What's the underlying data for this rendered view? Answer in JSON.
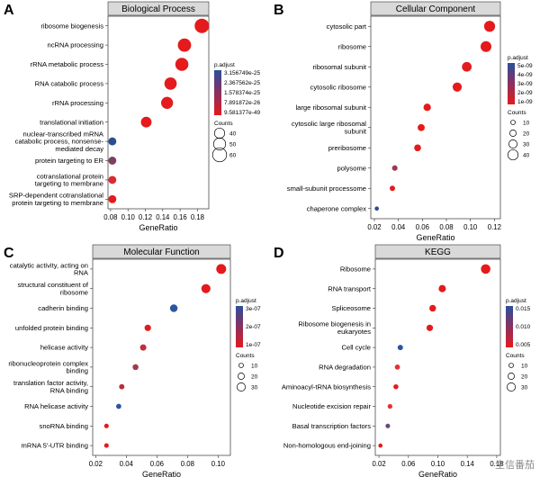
{
  "watermark": "生信番茄",
  "chart_data": [
    {
      "type": "scatter",
      "letter": "A",
      "title": "Biological Process",
      "xlabel": "GeneRatio",
      "xlim": [
        0.077,
        0.193
      ],
      "xticks": [
        0.08,
        0.1,
        0.12,
        0.14,
        0.16,
        0.18
      ],
      "xtick_labels": [
        "0.08",
        "0.10",
        "0.12",
        "0.14",
        "0.16",
        "0.18"
      ],
      "color_title": "p.adjust",
      "color_labels": [
        "3.156749e-25",
        "2.367562e-25",
        "1.578374e-25",
        "7.891872e-26",
        "9.581377e-49"
      ],
      "size_title": "Counts",
      "size_labels": [
        "40",
        "50",
        "60"
      ],
      "size_values": [
        40,
        50,
        60
      ],
      "points": [
        {
          "term": [
            "ribosome biogenesis"
          ],
          "x": 0.185,
          "count": 62,
          "color": "#e41a1c"
        },
        {
          "term": [
            "ncRNA processing"
          ],
          "x": 0.165,
          "count": 56,
          "color": "#e41a1c"
        },
        {
          "term": [
            "rRNA metabolic process"
          ],
          "x": 0.162,
          "count": 55,
          "color": "#e41a1c"
        },
        {
          "term": [
            "RNA catabolic process"
          ],
          "x": 0.149,
          "count": 51,
          "color": "#e41a1c"
        },
        {
          "term": [
            "rRNA processing"
          ],
          "x": 0.145,
          "count": 49,
          "color": "#e41a1c"
        },
        {
          "term": [
            "translational initiation"
          ],
          "x": 0.121,
          "count": 42,
          "color": "#e41a1c"
        },
        {
          "term": [
            "nuclear-transcribed mRNA",
            "catabolic process, nonsense-",
            "mediated decay"
          ],
          "x": 0.082,
          "count": 28,
          "color": "#2a4f8f"
        },
        {
          "term": [
            "protein targeting to ER"
          ],
          "x": 0.082,
          "count": 28,
          "color": "#7f3f5e"
        },
        {
          "term": [
            "cotranslational protein",
            "targeting to membrane"
          ],
          "x": 0.082,
          "count": 28,
          "color": "#dd2a30"
        },
        {
          "term": [
            "SRP-dependent cotranslational",
            "protein targeting to membrane"
          ],
          "x": 0.082,
          "count": 28,
          "color": "#e41a1c"
        }
      ]
    },
    {
      "type": "scatter",
      "letter": "B",
      "title": "Cellular Component",
      "xlabel": "GeneRatio",
      "xlim": [
        0.017,
        0.125
      ],
      "xticks": [
        0.02,
        0.04,
        0.06,
        0.08,
        0.1,
        0.12
      ],
      "xtick_labels": [
        "0.02",
        "0.04",
        "0.06",
        "0.08",
        "0.10",
        "0.12"
      ],
      "color_title": "p.adjust",
      "color_labels": [
        "5e-09",
        "4e-09",
        "3e-09",
        "2e-09",
        "1e-09"
      ],
      "size_title": "Counts",
      "size_labels": [
        "10",
        "20",
        "30",
        "40"
      ],
      "size_values": [
        10,
        20,
        30,
        40
      ],
      "points": [
        {
          "term": [
            "cytosolic part"
          ],
          "x": 0.116,
          "count": 44,
          "color": "#e41a1c"
        },
        {
          "term": [
            "ribosome"
          ],
          "x": 0.113,
          "count": 43,
          "color": "#e41a1c"
        },
        {
          "term": [
            "ribosomal subunit"
          ],
          "x": 0.097,
          "count": 37,
          "color": "#e41a1c"
        },
        {
          "term": [
            "cytosolic ribosome"
          ],
          "x": 0.089,
          "count": 34,
          "color": "#e41a1c"
        },
        {
          "term": [
            "large ribosomal subunit"
          ],
          "x": 0.064,
          "count": 25,
          "color": "#e41a1c"
        },
        {
          "term": [
            "cytosolic large ribosomal",
            "subunit"
          ],
          "x": 0.059,
          "count": 23,
          "color": "#e41a1c"
        },
        {
          "term": [
            "preribosome"
          ],
          "x": 0.056,
          "count": 22,
          "color": "#e41a1c"
        },
        {
          "term": [
            "polysome"
          ],
          "x": 0.037,
          "count": 15,
          "color": "#9b3a52"
        },
        {
          "term": [
            "small-subunit processome"
          ],
          "x": 0.035,
          "count": 14,
          "color": "#e41a1c"
        },
        {
          "term": [
            "chaperone complex"
          ],
          "x": 0.022,
          "count": 8,
          "color": "#2a4f8f"
        }
      ]
    },
    {
      "type": "scatter",
      "letter": "C",
      "title": "Molecular Function",
      "xlabel": "GeneRatio",
      "xlim": [
        0.018,
        0.108
      ],
      "xticks": [
        0.02,
        0.04,
        0.06,
        0.08,
        0.1
      ],
      "xtick_labels": [
        "0.02",
        "0.04",
        "0.06",
        "0.08",
        "0.10"
      ],
      "color_title": "p.adjust",
      "color_labels": [
        "3e-07",
        "2e-07",
        "1e-07"
      ],
      "size_title": "Counts",
      "size_labels": [
        "10",
        "20",
        "30"
      ],
      "size_values": [
        10,
        20,
        30
      ],
      "points": [
        {
          "term": [
            "catalytic activity, acting on",
            "RNA"
          ],
          "x": 0.102,
          "count": 38,
          "color": "#e41a1c"
        },
        {
          "term": [
            "structural constituent of",
            "ribosome"
          ],
          "x": 0.092,
          "count": 34,
          "color": "#e41a1c"
        },
        {
          "term": [
            "cadherin binding"
          ],
          "x": 0.071,
          "count": 26,
          "color": "#2a56a0"
        },
        {
          "term": [
            "unfolded protein binding"
          ],
          "x": 0.054,
          "count": 20,
          "color": "#e41a1c"
        },
        {
          "term": [
            "helicase activity"
          ],
          "x": 0.051,
          "count": 19,
          "color": "#c02f3a"
        },
        {
          "term": [
            "ribonucleoprotein complex",
            "binding"
          ],
          "x": 0.046,
          "count": 17,
          "color": "#a23a4c"
        },
        {
          "term": [
            "translation factor activity,",
            "RNA binding"
          ],
          "x": 0.037,
          "count": 14,
          "color": "#b43040"
        },
        {
          "term": [
            "RNA helicase activity"
          ],
          "x": 0.035,
          "count": 13,
          "color": "#2a56a0"
        },
        {
          "term": [
            "snoRNA binding"
          ],
          "x": 0.027,
          "count": 10,
          "color": "#e41a1c"
        },
        {
          "term": [
            "mRNA 5'-UTR binding"
          ],
          "x": 0.027,
          "count": 10,
          "color": "#e41a1c"
        }
      ]
    },
    {
      "type": "scatter",
      "letter": "D",
      "title": "KEGG",
      "xlabel": "GeneRatio",
      "xlim": [
        0.015,
        0.185
      ],
      "xticks": [
        0.02,
        0.06,
        0.1,
        0.14,
        0.18
      ],
      "xtick_labels": [
        "0.02",
        "0.06",
        "0.10",
        "0.14",
        "0.18"
      ],
      "color_title": "p.adjust",
      "color_labels": [
        "0.015",
        "0.010",
        "0.005"
      ],
      "size_title": "Counts",
      "size_labels": [
        "10",
        "20",
        "30"
      ],
      "size_values": [
        10,
        20,
        30
      ],
      "points": [
        {
          "term": [
            "Ribosome"
          ],
          "x": 0.165,
          "count": 36,
          "color": "#e41a1c"
        },
        {
          "term": [
            "RNA transport"
          ],
          "x": 0.106,
          "count": 24,
          "color": "#e41a1c"
        },
        {
          "term": [
            "Spliceosome"
          ],
          "x": 0.093,
          "count": 21,
          "color": "#e41a1c"
        },
        {
          "term": [
            "Ribosome biogenesis in",
            "eukaryotes"
          ],
          "x": 0.089,
          "count": 20,
          "color": "#e41a1c"
        },
        {
          "term": [
            "Cell cycle"
          ],
          "x": 0.049,
          "count": 14,
          "color": "#2a56a0"
        },
        {
          "term": [
            "RNA degradation"
          ],
          "x": 0.045,
          "count": 13,
          "color": "#e83030"
        },
        {
          "term": [
            "Aminoacyl-tRNA biosynthesis"
          ],
          "x": 0.043,
          "count": 12,
          "color": "#e41a1c"
        },
        {
          "term": [
            "Nucleotide excision repair"
          ],
          "x": 0.035,
          "count": 11,
          "color": "#e83030"
        },
        {
          "term": [
            "Basal transcription factors"
          ],
          "x": 0.032,
          "count": 10,
          "color": "#6a4a7a"
        },
        {
          "term": [
            "Non-homologous end-joining"
          ],
          "x": 0.022,
          "count": 8,
          "color": "#e41a1c"
        }
      ]
    }
  ]
}
